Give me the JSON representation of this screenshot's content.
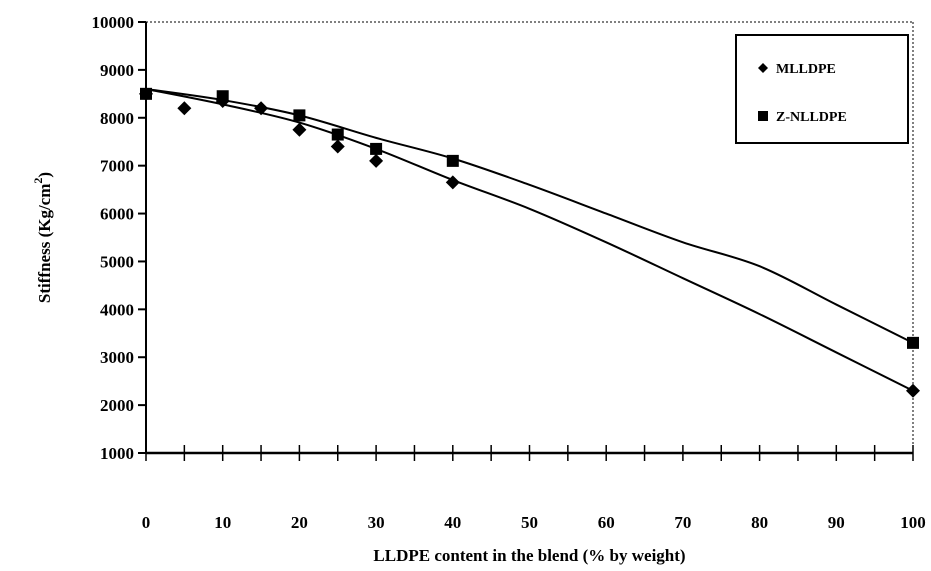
{
  "chart_data": {
    "type": "scatter",
    "title": "",
    "xlabel": "LLDPE content in the blend (% by weight)",
    "ylabel": "Stiffness (Kg/cm",
    "ylabel_superscript": "2",
    "ylabel_suffix": ")",
    "xlim": [
      0,
      100
    ],
    "ylim": [
      1000,
      10000
    ],
    "xticks": [
      0,
      10,
      20,
      30,
      40,
      50,
      60,
      70,
      80,
      90,
      100
    ],
    "xminor_ticks": [
      5,
      15,
      25,
      35,
      45,
      55,
      65,
      75,
      85,
      95
    ],
    "yticks": [
      1000,
      2000,
      3000,
      4000,
      5000,
      6000,
      7000,
      8000,
      9000,
      10000
    ],
    "grid": false,
    "legend_position": "top-right",
    "series": [
      {
        "name": "MLLDPE",
        "marker": "diamond",
        "color": "#000000",
        "x": [
          0,
          5,
          10,
          15,
          20,
          25,
          30,
          40,
          100
        ],
        "y": [
          8500,
          8200,
          8350,
          8200,
          7750,
          7400,
          7100,
          6650,
          2300
        ],
        "fit_x": [
          0,
          10,
          20,
          30,
          40,
          50,
          60,
          70,
          80,
          90,
          100
        ],
        "fit_y": [
          8600,
          8280,
          7900,
          7350,
          6700,
          6100,
          5400,
          4650,
          3900,
          3100,
          2300
        ]
      },
      {
        "name": "Z-NLLDPE",
        "marker": "square",
        "color": "#000000",
        "x": [
          0,
          10,
          20,
          25,
          30,
          40,
          100
        ],
        "y": [
          8500,
          8450,
          8050,
          7650,
          7350,
          7100,
          3300
        ],
        "fit_x": [
          0,
          10,
          20,
          30,
          40,
          50,
          60,
          70,
          80,
          90,
          100
        ],
        "fit_y": [
          8600,
          8370,
          8050,
          7580,
          7150,
          6600,
          6000,
          5400,
          4900,
          4100,
          3300
        ]
      }
    ]
  }
}
